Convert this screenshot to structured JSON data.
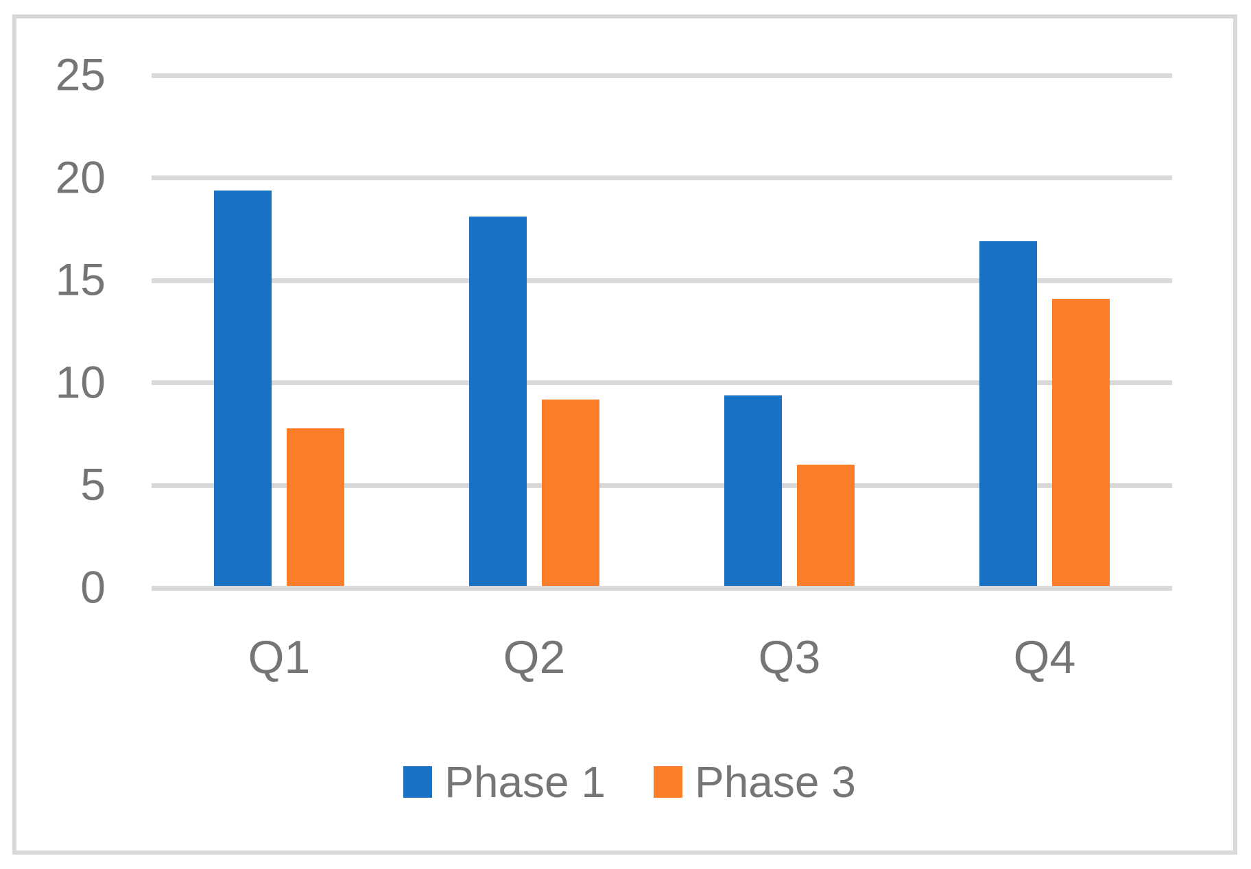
{
  "chart_data": {
    "type": "bar",
    "title": "",
    "categories": [
      "Q1",
      "Q2",
      "Q3",
      "Q4"
    ],
    "series": [
      {
        "name": "Phase 1",
        "color": "#1772C6",
        "values": [
          19.3,
          18.0,
          9.3,
          16.8
        ]
      },
      {
        "name": "Phase 3",
        "color": "#FD7E28",
        "values": [
          7.7,
          9.1,
          5.9,
          14.0
        ]
      }
    ],
    "y_ticks": [
      0,
      5,
      10,
      15,
      20,
      25
    ],
    "ylim": [
      0,
      25
    ],
    "xlabel": "",
    "ylabel": "",
    "grid": true,
    "gridline_color": "#D9D9D9",
    "axis_text_color": "#757575",
    "frame_border_color": "#D9D9D9",
    "legend_position": "bottom",
    "legend_labels": [
      "Phase 1",
      "Phase 3"
    ]
  }
}
